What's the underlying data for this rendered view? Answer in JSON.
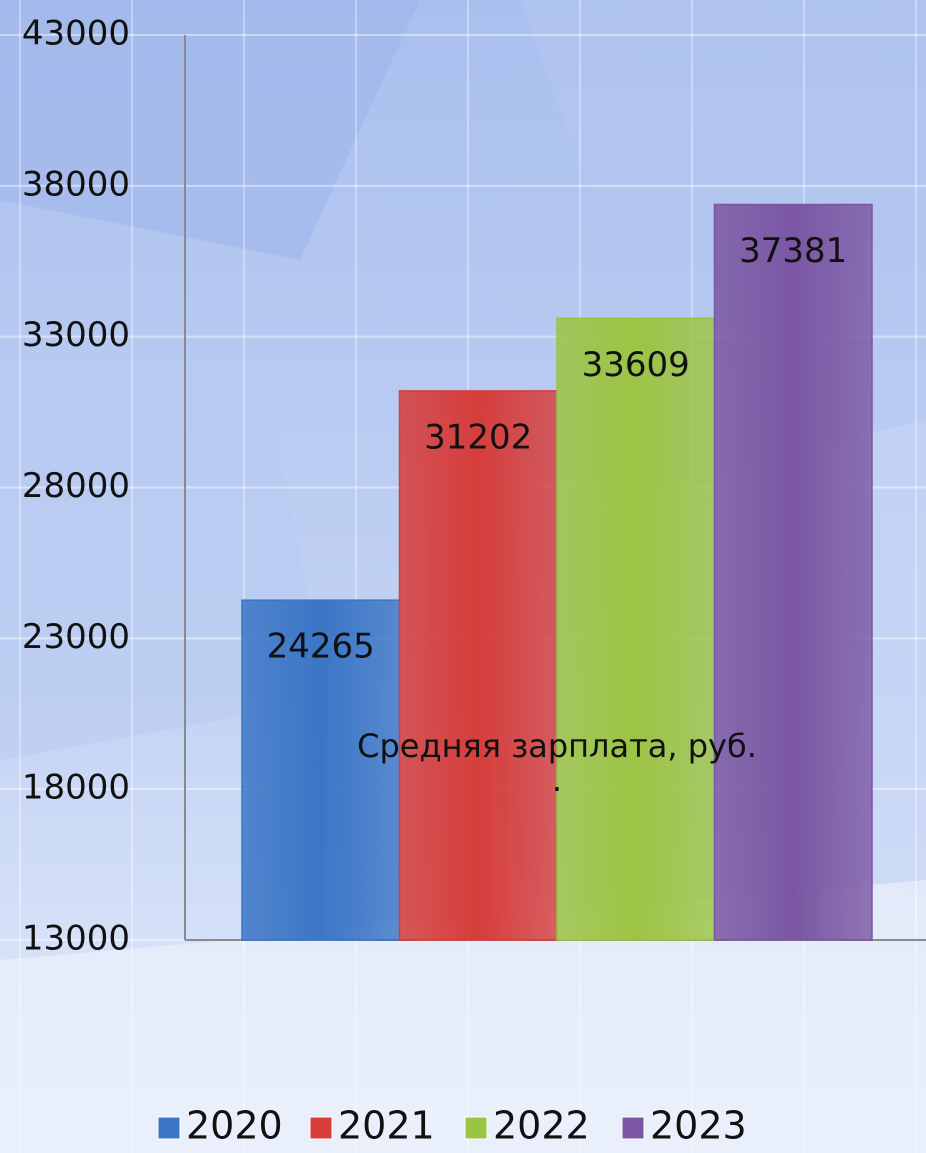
{
  "chart_data": {
    "type": "bar",
    "categories": [
      "Средняя зарплата, руб."
    ],
    "annotations": [
      "."
    ],
    "series": [
      {
        "name": "2020",
        "color": "#3b76c6",
        "values": [
          24265
        ]
      },
      {
        "name": "2021",
        "color": "#d63d3b",
        "values": [
          31202
        ]
      },
      {
        "name": "2022",
        "color": "#9cc444",
        "values": [
          33609
        ]
      },
      {
        "name": "2023",
        "color": "#7b57a3",
        "values": [
          37381
        ]
      }
    ],
    "ylim": [
      13000,
      43000
    ],
    "yticks": [
      13000,
      18000,
      23000,
      28000,
      33000,
      38000,
      43000
    ],
    "grid": true,
    "legend": "bottom"
  }
}
